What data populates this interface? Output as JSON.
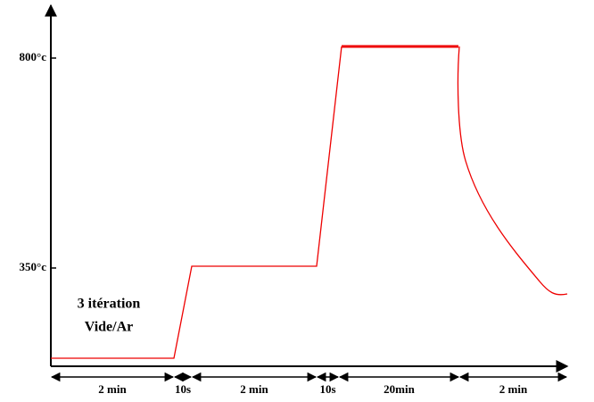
{
  "axis": {
    "y_labels": [
      "800°c",
      "350°c"
    ]
  },
  "annotation": {
    "lines": [
      "3 itération",
      "Vide/Ar"
    ]
  },
  "durations": [
    "2 min",
    "10s",
    "2 min",
    "10s",
    "20min",
    "2 min"
  ]
}
